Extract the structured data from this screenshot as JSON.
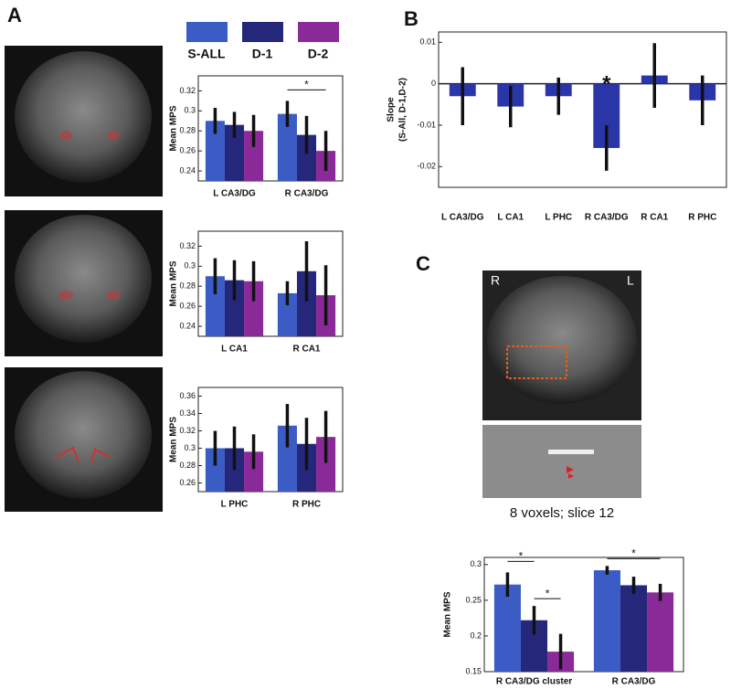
{
  "panels": [
    "A",
    "B",
    "C"
  ],
  "image_labels": {
    "left": "R",
    "right": "L",
    "caption": "8 voxels; slice 12"
  },
  "chart_data": [
    {
      "type": "bar",
      "ylabel": "Mean MPS",
      "categories": [
        "L CA3/DG",
        "R CA3/DG"
      ],
      "series": [
        {
          "name": "S-ALL",
          "color": "#3b5cc4",
          "values": [
            0.29,
            0.297
          ],
          "errors": [
            0.013,
            0.013
          ]
        },
        {
          "name": "D-1",
          "color": "#25287a",
          "values": [
            0.286,
            0.276
          ],
          "errors": [
            0.013,
            0.019
          ]
        },
        {
          "name": "D-2",
          "color": "#8a2a98",
          "values": [
            0.28,
            0.26
          ],
          "errors": [
            0.016,
            0.02
          ]
        }
      ],
      "ylim": [
        0.23,
        0.335
      ],
      "yticks": [
        0.24,
        0.26,
        0.28,
        0.3,
        0.32
      ],
      "annotations": [
        "*"
      ]
    },
    {
      "type": "bar",
      "ylabel": "Mean MPS",
      "categories": [
        "L CA1",
        "R CA1"
      ],
      "series": [
        {
          "color": "#3b5cc4",
          "values": [
            0.29,
            0.273
          ],
          "errors": [
            0.018,
            0.012
          ]
        },
        {
          "color": "#25287a",
          "values": [
            0.286,
            0.295
          ],
          "errors": [
            0.02,
            0.03
          ]
        },
        {
          "color": "#8a2a98",
          "values": [
            0.285,
            0.271
          ],
          "errors": [
            0.02,
            0.03
          ]
        }
      ],
      "ylim": [
        0.23,
        0.335
      ],
      "yticks": [
        0.24,
        0.26,
        0.28,
        0.3,
        0.32
      ]
    },
    {
      "type": "bar",
      "ylabel": "Mean MPS",
      "categories": [
        "L PHC",
        "R PHC"
      ],
      "series": [
        {
          "color": "#3b5cc4",
          "values": [
            0.3,
            0.326
          ],
          "errors": [
            0.02,
            0.025
          ]
        },
        {
          "color": "#25287a",
          "values": [
            0.3,
            0.305
          ],
          "errors": [
            0.025,
            0.03
          ]
        },
        {
          "color": "#8a2a98",
          "values": [
            0.296,
            0.313
          ],
          "errors": [
            0.02,
            0.03
          ]
        }
      ],
      "ylim": [
        0.25,
        0.37
      ],
      "yticks": [
        0.26,
        0.28,
        0.3,
        0.32,
        0.34,
        0.36
      ]
    },
    {
      "type": "bar",
      "ylabel": [
        "Slope",
        "(S-All, D-1,D-2)"
      ],
      "categories": [
        "L CA3/DG",
        "L CA1",
        "L PHC",
        "R CA3/DG",
        "R CA1",
        "R PHC"
      ],
      "series": [
        {
          "color": "#2a35a8",
          "values": [
            -0.003,
            -0.0055,
            -0.003,
            -0.0155,
            0.002,
            -0.004
          ],
          "errors": [
            0.007,
            0.005,
            0.0045,
            0.0055,
            0.0078,
            0.006
          ]
        }
      ],
      "ylim": [
        -0.025,
        0.0125
      ],
      "yticks": [
        0.01,
        0,
        -0.01,
        -0.02
      ],
      "annotations": [
        "*"
      ]
    },
    {
      "type": "bar",
      "ylabel": "Mean MPS",
      "categories": [
        "R CA3/DG cluster",
        "R CA3/DG"
      ],
      "series": [
        {
          "color": "#3b5cc4",
          "values": [
            0.272,
            0.292
          ],
          "errors": [
            0.017,
            0.006
          ]
        },
        {
          "color": "#25287a",
          "values": [
            0.222,
            0.271
          ],
          "errors": [
            0.02,
            0.012
          ]
        },
        {
          "color": "#8a2a98",
          "values": [
            0.178,
            0.261
          ],
          "errors": [
            0.025,
            0.012
          ]
        }
      ],
      "ylim": [
        0.15,
        0.31
      ],
      "yticks": [
        0.15,
        0.2,
        0.25,
        0.3
      ],
      "annotations": [
        "*",
        "*",
        "*"
      ]
    }
  ]
}
